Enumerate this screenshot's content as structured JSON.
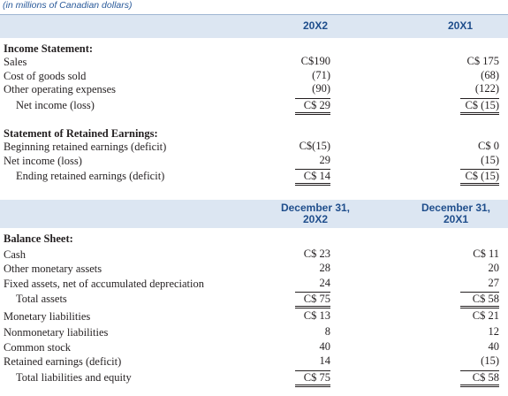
{
  "caption": "(in millions of Canadian dollars)",
  "header1": {
    "col1": "20X2",
    "col2": "20X1"
  },
  "income_statement": {
    "title": "Income Statement:",
    "rows": [
      [
        "Sales",
        "C$190",
        "C$ 175"
      ],
      [
        "Cost of goods sold",
        "(71)",
        "(68)"
      ],
      [
        "Other operating expenses",
        "(90)",
        "(122)"
      ],
      [
        "Net income (loss)",
        "C$ 29",
        "C$ (15)"
      ]
    ]
  },
  "retained_earnings": {
    "title": "Statement of Retained Earnings:",
    "rows": [
      [
        "Beginning retained earnings (deficit)",
        "C$(15)",
        "C$ 0"
      ],
      [
        "Net income (loss)",
        "29",
        "(15)"
      ],
      [
        "Ending retained earnings (deficit)",
        "C$ 14",
        "C$ (15)"
      ]
    ]
  },
  "header2": {
    "col1": [
      "December 31,",
      "20X2"
    ],
    "col2": [
      "December 31,",
      "20X1"
    ]
  },
  "balance_sheet": {
    "title": "Balance Sheet:",
    "rows": [
      [
        "Cash",
        "C$ 23",
        "C$ 11"
      ],
      [
        "Other monetary assets",
        "28",
        "20"
      ],
      [
        "Fixed assets, net of accumulated depreciation",
        "24",
        "27"
      ],
      [
        "Total assets",
        "C$ 75",
        "C$ 58"
      ],
      [
        "Monetary liabilities",
        "C$ 13",
        "C$ 21"
      ],
      [
        "Nonmonetary liabilities",
        "8",
        "12"
      ],
      [
        "Common stock",
        "40",
        "40"
      ],
      [
        "Retained earnings (deficit)",
        "14",
        "(15)"
      ],
      [
        "Total liabilities and equity",
        "C$ 75",
        "C$ 58"
      ]
    ]
  }
}
